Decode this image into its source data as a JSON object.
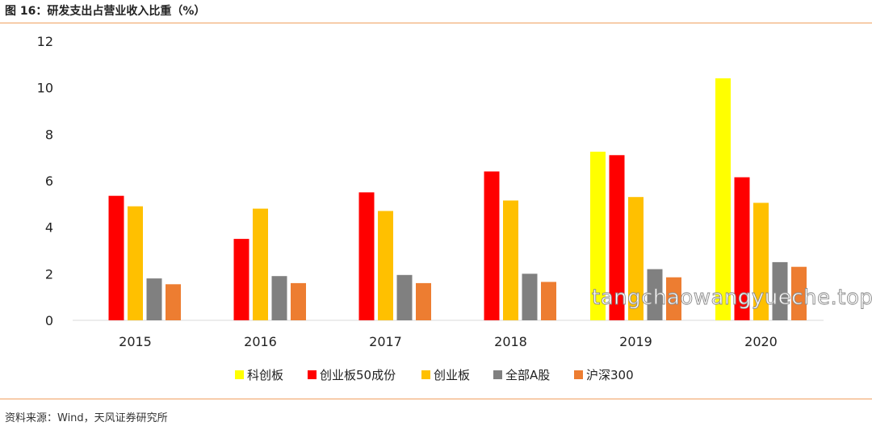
{
  "header": {
    "title": "图 16：研发支出占营业收入比重（%）"
  },
  "footer": {
    "source": "资料来源：Wind，天风证券研究所"
  },
  "watermark": "tangchaowangyueche.top",
  "chart_data": {
    "type": "bar",
    "categories": [
      "2015",
      "2016",
      "2017",
      "2018",
      "2019",
      "2020"
    ],
    "series": [
      {
        "name": "科创板",
        "color": "#ffff00",
        "values": [
          null,
          null,
          null,
          null,
          7.25,
          10.4
        ]
      },
      {
        "name": "创业板50成份",
        "color": "#ff0000",
        "values": [
          5.35,
          3.5,
          5.5,
          6.4,
          7.1,
          6.15
        ]
      },
      {
        "name": "创业板",
        "color": "#ffc000",
        "values": [
          4.9,
          4.8,
          4.7,
          5.15,
          5.3,
          5.05
        ]
      },
      {
        "name": "全部A股",
        "color": "#808080",
        "values": [
          1.8,
          1.9,
          1.95,
          2.0,
          2.2,
          2.5
        ]
      },
      {
        "name": "沪深300",
        "color": "#ed7d31",
        "values": [
          1.55,
          1.6,
          1.6,
          1.65,
          1.85,
          2.3
        ]
      }
    ],
    "ylim": [
      0,
      12
    ],
    "yticks": [
      "0",
      "2",
      "4",
      "6",
      "8",
      "10",
      "12"
    ],
    "grid": false,
    "legend": "bottom"
  }
}
